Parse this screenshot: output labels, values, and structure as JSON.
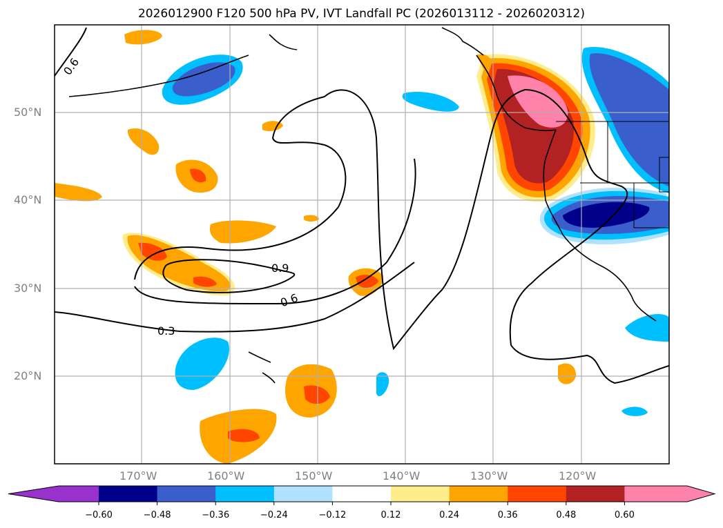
{
  "title": "2026012900 F120 500 hPa PV, IVT Landfall PC (2026013112 - 2026020312)",
  "map": {
    "projection": "PlateCarree",
    "extent_lon": [
      -180,
      -110
    ],
    "extent_lat": [
      10,
      60
    ],
    "lat_labels": [
      "50°N",
      "40°N",
      "30°N",
      "20°N"
    ],
    "lat_values": [
      50,
      40,
      30,
      20
    ],
    "lon_labels": [
      "170°W",
      "160°W",
      "150°W",
      "140°W",
      "130°W",
      "120°W"
    ],
    "lon_values": [
      -170,
      -160,
      -150,
      -140,
      -130,
      -120
    ],
    "contour_labels": [
      "0.6",
      "0.9",
      "0.6",
      "0.3"
    ]
  },
  "colorbar": {
    "ticks": [
      "−0.60",
      "−0.48",
      "−0.36",
      "−0.24",
      "−0.12",
      "0.12",
      "0.24",
      "0.36",
      "0.48",
      "0.60"
    ],
    "colors": [
      "#9932cc",
      "#00008b",
      "#3a5fcd",
      "#00bfff",
      "#b0e2ff",
      "#ffffff",
      "#ffec8b",
      "#ffa500",
      "#ff4500",
      "#b22222",
      "#ff82ab"
    ]
  }
}
